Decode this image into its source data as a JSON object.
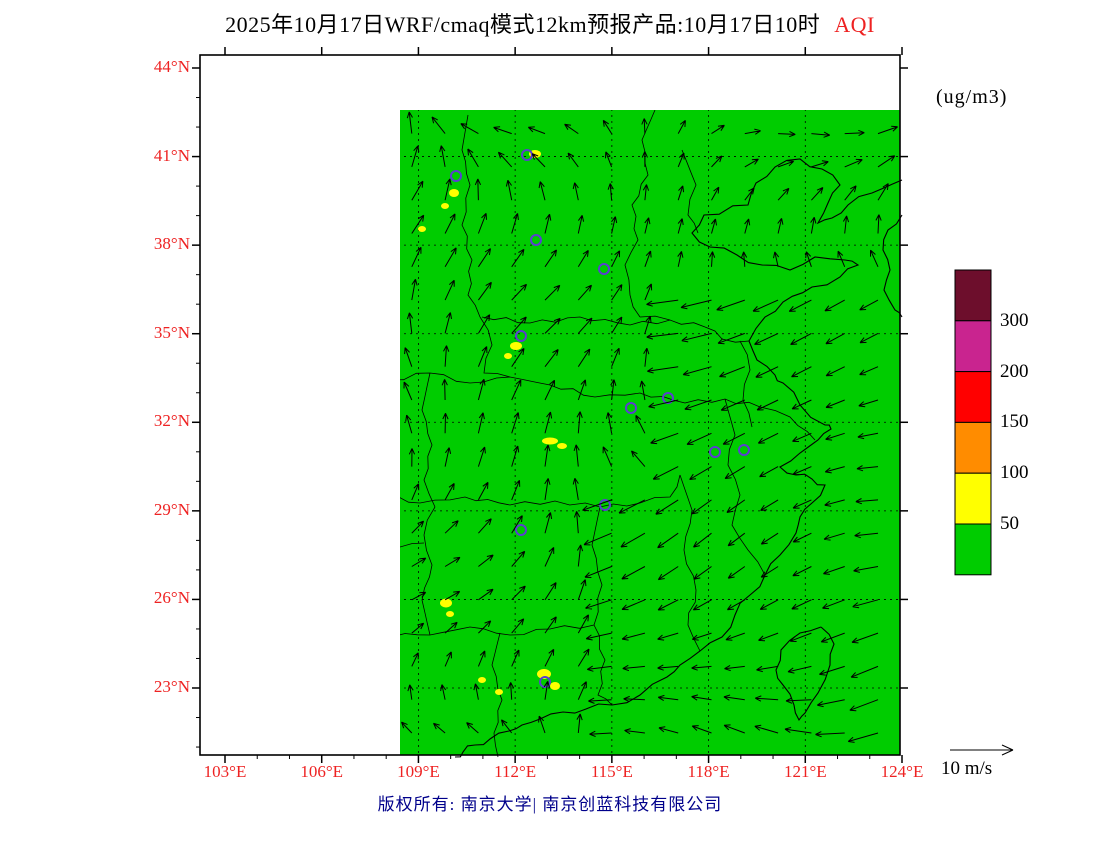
{
  "title": {
    "text": "2025年10月17日WRF/cmaq模式12km预报产品:10月17日10时",
    "pollutant": "AQI"
  },
  "units_label": "(ug/m3)",
  "wind_scale_label": "10 m/s",
  "copyright": "版权所有: 南京大学| 南京创蓝科技有限公司",
  "colors": {
    "axis_label_red": "#ee2222",
    "copyright_navy": "#00008b",
    "map_fill_green": "#00cc00",
    "marker_purple": "#5a3fd0"
  },
  "axes": {
    "lat": [
      "44°N",
      "41°N",
      "38°N",
      "35°N",
      "32°N",
      "29°N",
      "26°N",
      "23°N"
    ],
    "lon": [
      "103°E",
      "106°E",
      "109°E",
      "112°E",
      "115°E",
      "118°E",
      "121°E",
      "124°E"
    ]
  },
  "colorbar": {
    "values": [
      "300",
      "200",
      "150",
      "100",
      "50"
    ],
    "colors_top_to_bottom": [
      "#6d0e2c",
      "#c9248f",
      "#ff0000",
      "#ff8c00",
      "#ffff00",
      "#00cc00"
    ]
  },
  "map_layers": {
    "fill_color": "#00cc00",
    "marker_color": "#5a3fd0",
    "palette": {
      "y": "#ffff00",
      "o": "#ff8c00",
      "r": "#ff0000"
    },
    "city_markers": [
      [
        536,
        41
      ],
      [
        327,
        100
      ],
      [
        256,
        121
      ],
      [
        124,
        176
      ],
      [
        336,
        185
      ],
      [
        404,
        214
      ],
      [
        59,
        256
      ],
      [
        321,
        281
      ],
      [
        431,
        353
      ],
      [
        468,
        343
      ],
      [
        544,
        395
      ],
      [
        515,
        397
      ],
      [
        131,
        439
      ],
      [
        405,
        450
      ],
      [
        321,
        475
      ],
      [
        141,
        515
      ],
      [
        13,
        572
      ],
      [
        186,
        637
      ],
      [
        345,
        627
      ]
    ],
    "hotspots": [
      [
        510,
        18,
        26,
        14,
        "y"
      ],
      [
        532,
        8,
        18,
        10,
        "y"
      ],
      [
        548,
        4,
        14,
        7,
        "y"
      ],
      [
        495,
        30,
        12,
        8,
        "y"
      ],
      [
        522,
        28,
        10,
        6,
        "y"
      ],
      [
        560,
        14,
        8,
        5,
        "y"
      ],
      [
        601,
        12,
        9,
        6,
        "y"
      ],
      [
        648,
        21,
        7,
        5,
        "y"
      ],
      [
        492,
        47,
        7,
        5,
        "y"
      ],
      [
        335,
        99,
        6,
        4,
        "y"
      ],
      [
        254,
        138,
        5,
        4,
        "y"
      ],
      [
        245,
        151,
        4,
        3,
        "y"
      ],
      [
        222,
        174,
        4,
        3,
        "y"
      ],
      [
        10,
        216,
        4,
        5,
        "y"
      ],
      [
        316,
        291,
        6,
        4,
        "y"
      ],
      [
        308,
        301,
        4,
        3,
        "y"
      ],
      [
        37,
        367,
        7,
        5,
        "y"
      ],
      [
        57,
        371,
        9,
        6,
        "y"
      ],
      [
        73,
        377,
        5,
        4,
        "y"
      ],
      [
        58,
        370,
        5,
        4,
        "o"
      ],
      [
        59,
        370,
        2.5,
        2,
        "r"
      ],
      [
        350,
        386,
        8,
        3.5,
        "y"
      ],
      [
        362,
        391,
        5,
        3,
        "y"
      ],
      [
        82,
        421,
        4,
        3,
        "y"
      ],
      [
        246,
        548,
        6,
        4.5,
        "y"
      ],
      [
        250,
        559,
        4,
        3,
        "y"
      ],
      [
        282,
        625,
        4,
        3,
        "y"
      ],
      [
        344,
        619,
        7,
        5,
        "y"
      ],
      [
        355,
        631,
        5,
        4,
        "y"
      ],
      [
        299,
        637,
        4,
        3,
        "y"
      ]
    ],
    "wind": {
      "cols": 21,
      "rows": 21,
      "spacing": 33.3,
      "margin": 12
    }
  }
}
